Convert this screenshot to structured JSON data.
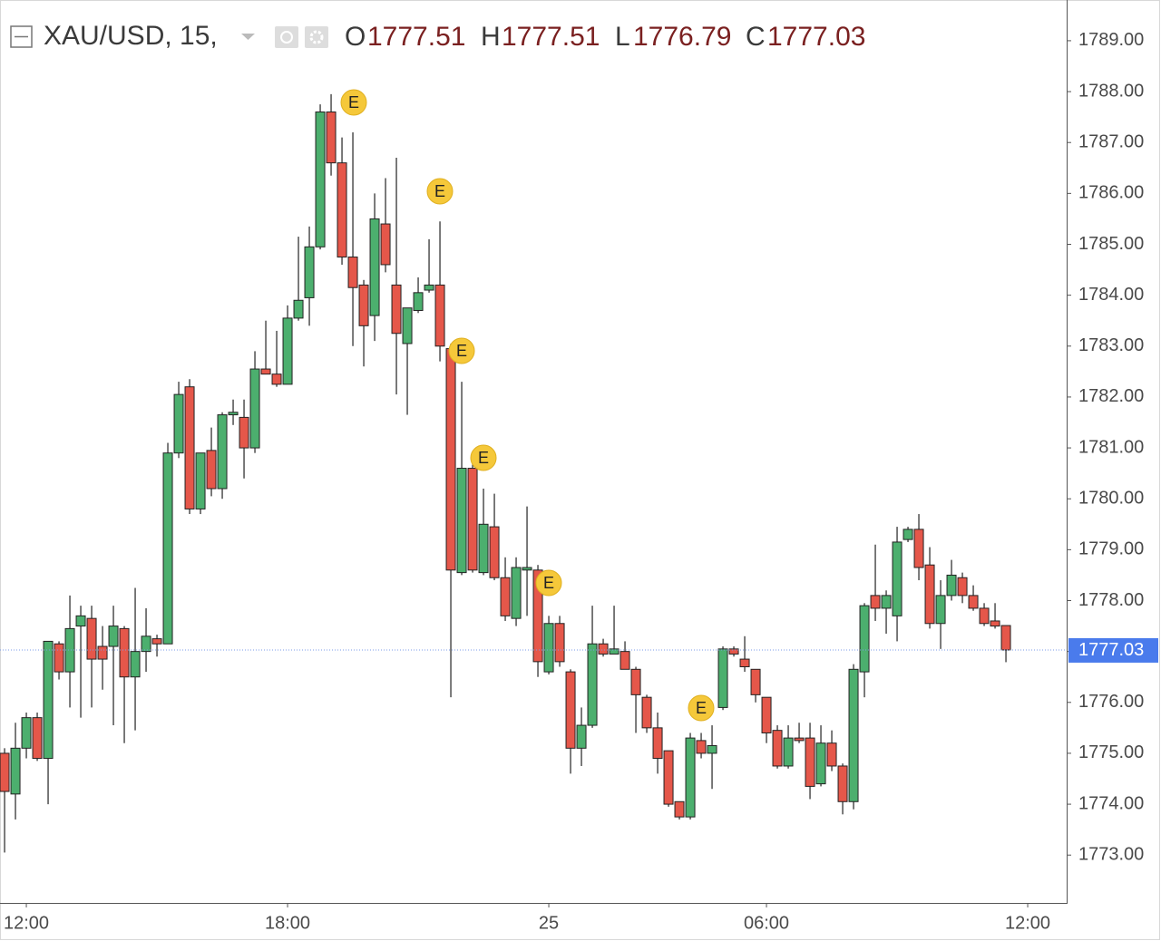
{
  "header": {
    "symbol": "XAU/USD, 15,",
    "o_label": "O",
    "o": 1777.51,
    "h_label": "H",
    "h": 1777.51,
    "l_label": "L",
    "l": 1776.79,
    "c_label": "C",
    "c": 1777.03
  },
  "chart_data": {
    "type": "candlestick",
    "open": [
      1775.0,
      1774.2,
      1775.1,
      1775.7,
      1774.9,
      1777.15,
      1776.6,
      1777.5,
      1777.65,
      1777.1,
      1777.1,
      1777.45,
      1776.5,
      1777.0,
      1777.25,
      1777.15,
      1780.9,
      1782.2,
      1779.8,
      1780.95,
      1780.2,
      1781.65,
      1781.6,
      1781.0,
      1782.55,
      1782.45,
      1782.25,
      1783.55,
      1783.95,
      1784.95,
      1787.6,
      1786.6,
      1784.75,
      1784.2,
      1783.6,
      1785.4,
      1784.2,
      1783.05,
      1783.7,
      1784.1,
      1784.2,
      1782.95,
      1778.55,
      1780.6,
      1778.55,
      1779.45,
      1778.45,
      1777.65,
      1778.6,
      1778.6,
      1776.6,
      1777.55,
      1776.6,
      1775.1,
      1775.55,
      1777.15,
      1776.95,
      1777.0,
      1776.65,
      1776.1,
      1775.5,
      1775.05,
      1774.05,
      1773.75,
      1775.25,
      1775.0,
      1775.9,
      1777.05,
      1776.85,
      1776.65,
      1776.1,
      1775.45,
      1774.75,
      1775.3,
      1775.3,
      1774.4,
      1775.2,
      1774.75,
      1774.05,
      1776.6,
      1778.1,
      1777.85,
      1777.7,
      1779.2,
      1779.4,
      1778.7,
      1777.55,
      1778.1,
      1778.45,
      1778.1,
      1777.85,
      1777.6,
      1777.51
    ],
    "high": [
      1775.1,
      1775.6,
      1775.8,
      1775.8,
      1777.2,
      1777.2,
      1778.1,
      1777.9,
      1777.9,
      1777.5,
      1777.9,
      1777.5,
      1778.25,
      1777.85,
      1777.33,
      1781.1,
      1782.3,
      1782.35,
      1780.9,
      1781.4,
      1781.7,
      1781.95,
      1781.95,
      1782.9,
      1783.5,
      1783.3,
      1783.8,
      1785.15,
      1785.35,
      1787.75,
      1787.95,
      1787.1,
      1787.2,
      1784.3,
      1786.0,
      1786.3,
      1786.7,
      1783.75,
      1784.35,
      1785.1,
      1785.45,
      1783.05,
      1782.3,
      1780.7,
      1780.2,
      1780.1,
      1778.85,
      1778.85,
      1779.85,
      1778.7,
      1777.7,
      1777.7,
      1776.65,
      1775.9,
      1777.9,
      1777.25,
      1777.9,
      1777.2,
      1776.7,
      1776.15,
      1775.8,
      1775.05,
      1774.05,
      1775.4,
      1775.4,
      1775.55,
      1777.1,
      1777.1,
      1777.3,
      1776.65,
      1776.1,
      1775.55,
      1775.55,
      1775.6,
      1775.6,
      1775.55,
      1775.45,
      1774.8,
      1776.75,
      1777.95,
      1779.1,
      1778.2,
      1779.45,
      1779.45,
      1779.7,
      1779.05,
      1778.4,
      1778.8,
      1778.55,
      1778.3,
      1777.95,
      1777.95,
      1777.51
    ],
    "low": [
      1773.05,
      1773.7,
      1774.9,
      1774.85,
      1774.0,
      1776.45,
      1775.9,
      1775.7,
      1775.9,
      1776.25,
      1775.55,
      1775.2,
      1775.45,
      1776.6,
      1776.9,
      1777.15,
      1780.8,
      1779.7,
      1779.7,
      1780.05,
      1780.0,
      1781.45,
      1780.4,
      1780.9,
      1782.45,
      1782.2,
      1782.25,
      1783.5,
      1783.4,
      1784.9,
      1786.35,
      1784.6,
      1783.0,
      1782.6,
      1783.1,
      1784.45,
      1782.05,
      1781.65,
      1783.65,
      1784.05,
      1782.7,
      1776.1,
      1778.5,
      1778.55,
      1778.5,
      1778.4,
      1777.6,
      1777.5,
      1777.7,
      1776.5,
      1776.55,
      1776.7,
      1774.6,
      1774.75,
      1775.5,
      1776.9,
      1776.95,
      1776.65,
      1775.4,
      1775.4,
      1774.6,
      1773.95,
      1773.7,
      1773.7,
      1774.9,
      1774.3,
      1775.85,
      1776.9,
      1776.6,
      1776.0,
      1775.2,
      1774.7,
      1774.7,
      1775.2,
      1774.1,
      1774.35,
      1774.65,
      1773.8,
      1773.9,
      1776.1,
      1777.6,
      1777.35,
      1777.2,
      1779.15,
      1778.4,
      1777.45,
      1777.05,
      1778.0,
      1777.95,
      1777.8,
      1777.5,
      1777.45,
      1776.79
    ],
    "close": [
      1774.25,
      1775.1,
      1775.7,
      1774.9,
      1777.2,
      1776.6,
      1777.45,
      1777.7,
      1776.85,
      1776.85,
      1777.5,
      1776.5,
      1777.0,
      1777.3,
      1777.15,
      1780.9,
      1782.05,
      1779.8,
      1780.9,
      1780.2,
      1781.65,
      1781.7,
      1781.0,
      1782.55,
      1782.45,
      1782.25,
      1783.55,
      1783.9,
      1784.95,
      1787.6,
      1786.6,
      1784.75,
      1784.15,
      1783.4,
      1785.5,
      1784.6,
      1783.25,
      1783.75,
      1784.05,
      1784.2,
      1783.0,
      1778.6,
      1780.6,
      1778.6,
      1779.5,
      1778.45,
      1777.7,
      1778.65,
      1778.65,
      1776.8,
      1777.55,
      1776.8,
      1775.1,
      1775.55,
      1777.15,
      1776.95,
      1777.05,
      1776.65,
      1776.15,
      1775.5,
      1774.9,
      1774.0,
      1773.75,
      1775.3,
      1775.0,
      1775.15,
      1777.05,
      1776.95,
      1776.7,
      1776.15,
      1775.4,
      1774.75,
      1775.3,
      1775.25,
      1774.35,
      1775.2,
      1774.75,
      1774.05,
      1776.65,
      1777.9,
      1777.85,
      1778.1,
      1779.15,
      1779.4,
      1778.65,
      1777.55,
      1778.1,
      1778.5,
      1778.1,
      1777.85,
      1777.55,
      1777.5,
      1777.03
    ],
    "up_color": "#4caf6e",
    "down_color": "#e5574a",
    "xlim": [
      -0.42,
      97.58
    ],
    "xticks": [
      {
        "value": 2,
        "label": "12:00"
      },
      {
        "value": 26,
        "label": "18:00"
      },
      {
        "value": 50,
        "label": "25"
      },
      {
        "value": 70,
        "label": "06:00"
      },
      {
        "value": 94,
        "label": "12:00"
      }
    ],
    "ylim": [
      1772.06,
      1789.8
    ],
    "yticks": [
      {
        "value": 1773,
        "label": "1773.00"
      },
      {
        "value": 1774,
        "label": "1774.00"
      },
      {
        "value": 1775,
        "label": "1775.00"
      },
      {
        "value": 1776,
        "label": "1776.00"
      },
      {
        "value": 1777,
        "label": "1777.00"
      },
      {
        "value": 1778,
        "label": "1778.00"
      },
      {
        "value": 1779,
        "label": "1779.00"
      },
      {
        "value": 1780,
        "label": "1780.00"
      },
      {
        "value": 1781,
        "label": "1781.00"
      },
      {
        "value": 1782,
        "label": "1782.00"
      },
      {
        "value": 1783,
        "label": "1783.00"
      },
      {
        "value": 1784,
        "label": "1784.00"
      },
      {
        "value": 1785,
        "label": "1785.00"
      },
      {
        "value": 1786,
        "label": "1786.00"
      },
      {
        "value": 1787,
        "label": "1787.00"
      },
      {
        "value": 1788,
        "label": "1788.00"
      },
      {
        "value": 1789,
        "label": "1789.00"
      }
    ],
    "last_price": 1777.03,
    "annotations": [
      "E",
      "E",
      "E",
      "E",
      "E",
      "E"
    ]
  }
}
